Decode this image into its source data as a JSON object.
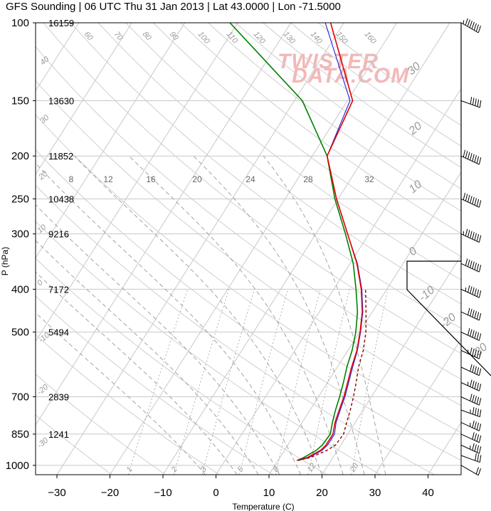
{
  "title": "GFS Sounding | 06 UTC Thu 31 Jan 2013 | Lat 43.0000 | Lon -71.5000",
  "watermark": [
    "TWISTER",
    "DATA.COM"
  ],
  "colors": {
    "temperature": "#e00000",
    "dewpoint": "#008000",
    "virtual_temp": "#2020e0",
    "parcel": "#8b0000",
    "grid": "#c8c8c8",
    "hodo_line": "#000000"
  },
  "chart_data": {
    "type": "line",
    "title": "GFS Sounding | 06 UTC Thu 31 Jan 2013 | Lat 43.0000 | Lon -71.5000",
    "xlabel": "Temperature (C)",
    "ylabel": "P (hPa)",
    "xlim": [
      -35,
      47
    ],
    "ylim": [
      1050,
      100
    ],
    "yscale": "log",
    "x_ticks": [
      -30,
      -20,
      -10,
      0,
      10,
      20,
      30,
      40
    ],
    "x_tick_labels": [
      "−30",
      "−20",
      "−10",
      "0",
      "10",
      "20",
      "30",
      "40"
    ],
    "pressure_levels": [
      {
        "p": 100,
        "height": "16159"
      },
      {
        "p": 150,
        "height": "13630"
      },
      {
        "p": 200,
        "height": "11852"
      },
      {
        "p": 250,
        "height": "10438"
      },
      {
        "p": 300,
        "height": "9216"
      },
      {
        "p": 400,
        "height": "7172"
      },
      {
        "p": 500,
        "height": "5494"
      },
      {
        "p": 700,
        "height": "2839"
      },
      {
        "p": 850,
        "height": "1241"
      },
      {
        "p": 1000,
        "height": ""
      }
    ],
    "isotherm_labels": [
      "-30",
      "-20",
      "-10",
      "0",
      "10",
      "20",
      "30"
    ],
    "mixing_ratio_labels": [
      "1",
      "2",
      "3",
      "5",
      "8",
      "12",
      "20"
    ],
    "dry_adiabat_labels": [
      "60",
      "70",
      "80",
      "90",
      "100",
      "110",
      "120",
      "130",
      "140",
      "150",
      "160"
    ],
    "moist_adiabat_labels": [
      "8",
      "12",
      "16",
      "20",
      "24",
      "28",
      "32"
    ],
    "side_labels": [
      "40",
      "30",
      "20",
      "10",
      "0",
      "-10",
      "-20",
      "-30"
    ],
    "series": [
      {
        "name": "Temperature",
        "points": [
          [
            975,
            13.6
          ],
          [
            960,
            15.2
          ],
          [
            925,
            16.8
          ],
          [
            900,
            17.2
          ],
          [
            850,
            17.2
          ],
          [
            800,
            16.2
          ],
          [
            750,
            15.5
          ],
          [
            700,
            14.8
          ],
          [
            650,
            13.8
          ],
          [
            600,
            12.7
          ],
          [
            550,
            11.7
          ],
          [
            500,
            10.1
          ],
          [
            450,
            8.1
          ],
          [
            400,
            5.2
          ],
          [
            350,
            1.3
          ],
          [
            300,
            -4.0
          ],
          [
            250,
            -10.3
          ],
          [
            200,
            -17.2
          ],
          [
            150,
            -19.0
          ],
          [
            100,
            -32.5
          ]
        ]
      },
      {
        "name": "Dew Point",
        "points": [
          [
            975,
            13.6
          ],
          [
            960,
            14.5
          ],
          [
            925,
            16.0
          ],
          [
            900,
            16.5
          ],
          [
            850,
            16.7
          ],
          [
            800,
            15.7
          ],
          [
            750,
            14.8
          ],
          [
            700,
            14.0
          ],
          [
            650,
            13.0
          ],
          [
            600,
            11.8
          ],
          [
            550,
            10.8
          ],
          [
            500,
            9.3
          ],
          [
            450,
            7.2
          ],
          [
            400,
            4.2
          ],
          [
            350,
            0.6
          ],
          [
            300,
            -4.4
          ],
          [
            250,
            -10.6
          ],
          [
            200,
            -17.2
          ],
          [
            150,
            -28.5
          ],
          [
            100,
            -51.5
          ]
        ]
      },
      {
        "name": "Virtual Temperature",
        "points": [
          [
            975,
            13.9
          ],
          [
            960,
            15.5
          ],
          [
            925,
            17.1
          ],
          [
            900,
            17.5
          ],
          [
            850,
            17.5
          ],
          [
            800,
            16.4
          ],
          [
            750,
            15.7
          ],
          [
            700,
            15.0
          ],
          [
            650,
            14.0
          ],
          [
            600,
            12.9
          ],
          [
            550,
            11.8
          ],
          [
            500,
            10.2
          ],
          [
            450,
            8.2
          ],
          [
            400,
            5.3
          ],
          [
            350,
            1.4
          ],
          [
            300,
            -4.0
          ],
          [
            250,
            -10.3
          ],
          [
            200,
            -17.2
          ],
          [
            150,
            -19.5
          ],
          [
            100,
            -33.5
          ]
        ]
      },
      {
        "name": "Parcel",
        "points": [
          [
            975,
            13.6
          ],
          [
            960,
            15.8
          ],
          [
            925,
            18.0
          ],
          [
            900,
            19.0
          ],
          [
            850,
            19.2
          ],
          [
            800,
            18.4
          ],
          [
            750,
            17.6
          ],
          [
            700,
            16.6
          ],
          [
            650,
            15.4
          ],
          [
            600,
            14.0
          ],
          [
            550,
            12.9
          ],
          [
            500,
            11.2
          ],
          [
            450,
            8.8
          ],
          [
            400,
            6.0
          ]
        ]
      }
    ]
  },
  "wind_barbs": [
    {
      "p": 100,
      "dir": 300,
      "spd": 75
    },
    {
      "p": 150,
      "dir": 290,
      "spd": 50
    },
    {
      "p": 200,
      "dir": 295,
      "spd": 80
    },
    {
      "p": 250,
      "dir": 295,
      "spd": 80
    },
    {
      "p": 300,
      "dir": 295,
      "spd": 75
    },
    {
      "p": 350,
      "dir": 295,
      "spd": 70
    },
    {
      "p": 400,
      "dir": 295,
      "spd": 65
    },
    {
      "p": 450,
      "dir": 295,
      "spd": 60
    },
    {
      "p": 500,
      "dir": 295,
      "spd": 60
    },
    {
      "p": 550,
      "dir": 295,
      "spd": 55
    },
    {
      "p": 600,
      "dir": 295,
      "spd": 50
    },
    {
      "p": 650,
      "dir": 295,
      "spd": 55
    },
    {
      "p": 700,
      "dir": 295,
      "spd": 50
    },
    {
      "p": 750,
      "dir": 290,
      "spd": 45
    },
    {
      "p": 800,
      "dir": 295,
      "spd": 45
    },
    {
      "p": 850,
      "dir": 295,
      "spd": 40
    },
    {
      "p": 900,
      "dir": 295,
      "spd": 45
    },
    {
      "p": 950,
      "dir": 290,
      "spd": 30
    },
    {
      "p": 1000,
      "dir": 300,
      "spd": 20
    }
  ]
}
